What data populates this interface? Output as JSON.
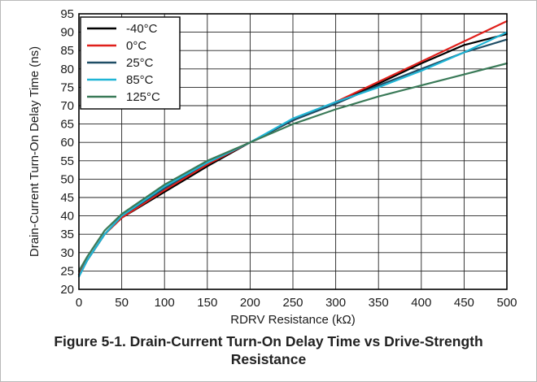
{
  "caption": {
    "line1": "Figure 5-1. Drain-Current Turn-On Delay Time vs Drive-Strength",
    "line2": "Resistance"
  },
  "chart_data": {
    "type": "line",
    "title": "",
    "xlabel": "RDRV Resistance (kΩ)",
    "ylabel": "Drain-Current Turn-On Delay Time (ns)",
    "xlim": [
      0,
      500
    ],
    "ylim": [
      20,
      95
    ],
    "xticks": [
      0,
      50,
      100,
      150,
      200,
      250,
      300,
      350,
      400,
      450,
      500
    ],
    "yticks": [
      20,
      25,
      30,
      35,
      40,
      45,
      50,
      55,
      60,
      65,
      70,
      75,
      80,
      85,
      90,
      95
    ],
    "grid": true,
    "legend_position": "top-left",
    "series": [
      {
        "name": "-40°C",
        "color": "#000000",
        "x": [
          0,
          10,
          30,
          50,
          100,
          150,
          200,
          250,
          300,
          350,
          400,
          450,
          500
        ],
        "y": [
          24,
          28,
          35,
          39.5,
          46.5,
          53.5,
          60,
          66,
          71,
          76,
          81.5,
          86.5,
          89.5
        ]
      },
      {
        "name": "0°C",
        "color": "#e0201b",
        "x": [
          0,
          10,
          30,
          50,
          100,
          150,
          200,
          250,
          300,
          350,
          400,
          450,
          500
        ],
        "y": [
          24,
          28,
          35,
          39.5,
          47,
          54,
          60,
          66,
          71,
          76.5,
          82,
          87.5,
          93
        ]
      },
      {
        "name": "25°C",
        "color": "#1f4e66",
        "x": [
          0,
          10,
          30,
          50,
          100,
          150,
          200,
          250,
          300,
          350,
          400,
          450,
          500
        ],
        "y": [
          23.5,
          28,
          35,
          40,
          47.5,
          54.5,
          60,
          66,
          70.5,
          75.5,
          80,
          84.5,
          88
        ]
      },
      {
        "name": "85°C",
        "color": "#1fb5d6",
        "x": [
          0,
          10,
          30,
          50,
          100,
          150,
          200,
          250,
          300,
          350,
          400,
          450,
          500
        ],
        "y": [
          23.5,
          28,
          35,
          40,
          48,
          54.5,
          60,
          66.5,
          71,
          75,
          79.5,
          84.5,
          90
        ]
      },
      {
        "name": "125°C",
        "color": "#3a7a58",
        "x": [
          0,
          10,
          30,
          50,
          100,
          150,
          200,
          250,
          300,
          350,
          400,
          450,
          500
        ],
        "y": [
          25,
          29,
          36,
          40.5,
          48.5,
          55,
          60,
          65,
          69,
          72.5,
          75.5,
          78.5,
          81.5
        ]
      }
    ]
  }
}
